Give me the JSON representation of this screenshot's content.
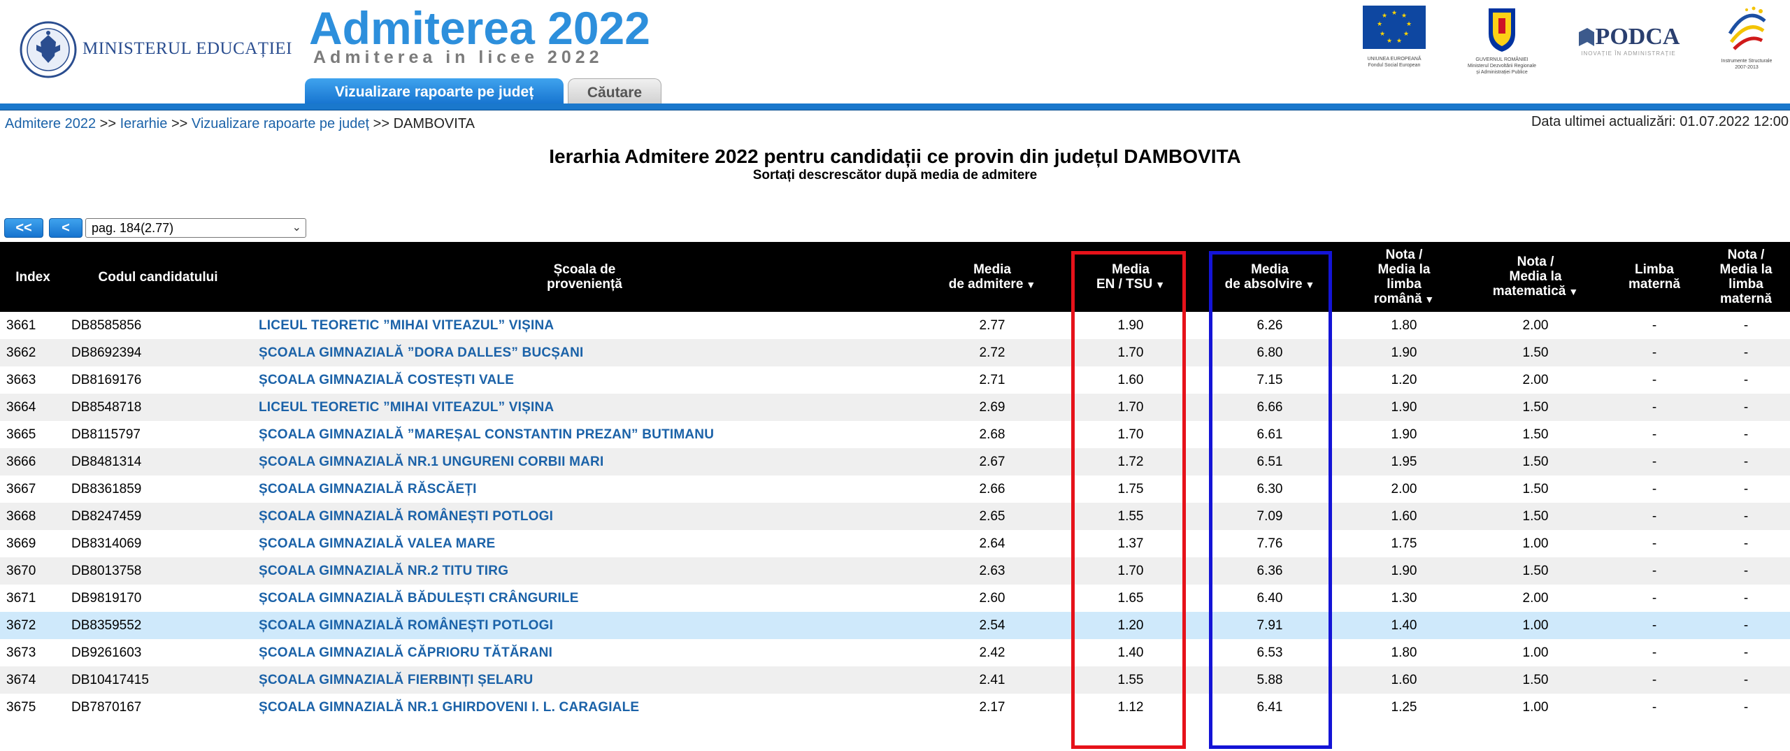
{
  "header": {
    "ministry_name": "MINISTERUL EDUCAȚIEI",
    "app_title": "Admiterea 2022",
    "app_subtitle": "Admiterea in licee 2022",
    "logos": {
      "eu_caption": [
        "UNIUNEA EUROPEANĂ",
        "Fondul Social European"
      ],
      "gov_caption": [
        "GUVERNUL ROMÂNIEI",
        "Ministerul Dezvoltării Regionale",
        "și Administrației Publice"
      ],
      "podca_name": "PODCA",
      "podca_tagline": "INOVAȚIE ÎN ADMINISTRAȚIE",
      "is_caption": [
        "Instrumente Structurale",
        "2007-2013"
      ]
    }
  },
  "tabs": [
    {
      "label": "Vizualizare rapoarte pe județ",
      "active": true
    },
    {
      "label": "Căutare",
      "active": false
    }
  ],
  "breadcrumb": {
    "items": [
      "Admitere 2022",
      "Ierarhie",
      "Vizualizare rapoarte pe județ"
    ],
    "separator": ">>",
    "current": "DAMBOVITA"
  },
  "last_update": "Data ultimei actualizări: 01.07.2022 12:00",
  "page": {
    "title": "Ierarhia Admitere 2022 pentru candidații ce provin din județul DAMBOVITA",
    "subtitle": "Sortați descrescător după media de admitere"
  },
  "pager": {
    "first_label": "<<",
    "prev_label": "<",
    "selected_page": "pag. 184(2.77)"
  },
  "colors": {
    "accent_blue": "#1a78cc",
    "link_blue": "#1b62a8",
    "highlight_red": "#e6121a",
    "highlight_blue": "#1414d6",
    "selected_row": "#cfe9fb"
  },
  "table": {
    "headers": [
      {
        "lines": [
          "Index"
        ],
        "sortable": false
      },
      {
        "lines": [
          "Codul candidatului"
        ],
        "sortable": false
      },
      {
        "lines": [
          "Școala de",
          "proveniență"
        ],
        "sortable": false
      },
      {
        "lines": [
          "Media",
          "de admitere"
        ],
        "sortable": true
      },
      {
        "lines": [
          "Media",
          "EN / TSU"
        ],
        "sortable": true
      },
      {
        "lines": [
          "Media",
          "de absolvire"
        ],
        "sortable": true
      },
      {
        "lines": [
          "Nota /",
          "Media la",
          "limba",
          "română"
        ],
        "sortable": true
      },
      {
        "lines": [
          "Nota /",
          "Media la",
          "matematică"
        ],
        "sortable": true
      },
      {
        "lines": [
          "Limba",
          "maternă"
        ],
        "sortable": false
      },
      {
        "lines": [
          "Nota /",
          "Media la",
          "limba",
          "maternă"
        ],
        "sortable": false
      }
    ],
    "sort_arrow": "▼",
    "rows": [
      [
        "3661",
        "DB8585856",
        "LICEUL TEORETIC ”MIHAI VITEAZUL” VIȘINA",
        "2.77",
        "1.90",
        "6.26",
        "1.80",
        "2.00",
        "-",
        "-"
      ],
      [
        "3662",
        "DB8692394",
        "ȘCOALA GIMNAZIALĂ ”DORA DALLES” BUCȘANI",
        "2.72",
        "1.70",
        "6.80",
        "1.90",
        "1.50",
        "-",
        "-"
      ],
      [
        "3663",
        "DB8169176",
        "ȘCOALA GIMNAZIALĂ COSTEȘTI VALE",
        "2.71",
        "1.60",
        "7.15",
        "1.20",
        "2.00",
        "-",
        "-"
      ],
      [
        "3664",
        "DB8548718",
        "LICEUL TEORETIC ”MIHAI VITEAZUL” VIȘINA",
        "2.69",
        "1.70",
        "6.66",
        "1.90",
        "1.50",
        "-",
        "-"
      ],
      [
        "3665",
        "DB8115797",
        "ȘCOALA GIMNAZIALĂ ”MAREȘAL CONSTANTIN PREZAN” BUTIMANU",
        "2.68",
        "1.70",
        "6.61",
        "1.90",
        "1.50",
        "-",
        "-"
      ],
      [
        "3666",
        "DB8481314",
        "ȘCOALA GIMNAZIALĂ NR.1 UNGURENI CORBII MARI",
        "2.67",
        "1.72",
        "6.51",
        "1.95",
        "1.50",
        "-",
        "-"
      ],
      [
        "3667",
        "DB8361859",
        "ȘCOALA GIMNAZIALĂ RĂSCĂEȚI",
        "2.66",
        "1.75",
        "6.30",
        "2.00",
        "1.50",
        "-",
        "-"
      ],
      [
        "3668",
        "DB8247459",
        "ȘCOALA GIMNAZIALĂ ROMÂNEȘTI POTLOGI",
        "2.65",
        "1.55",
        "7.09",
        "1.60",
        "1.50",
        "-",
        "-"
      ],
      [
        "3669",
        "DB8314069",
        "ȘCOALA GIMNAZIALĂ VALEA MARE",
        "2.64",
        "1.37",
        "7.76",
        "1.75",
        "1.00",
        "-",
        "-"
      ],
      [
        "3670",
        "DB8013758",
        "ȘCOALA GIMNAZIALĂ NR.2 TITU TIRG",
        "2.63",
        "1.70",
        "6.36",
        "1.90",
        "1.50",
        "-",
        "-"
      ],
      [
        "3671",
        "DB9819170",
        "ȘCOALA GIMNAZIALĂ BĂDULEȘTI CRÂNGURILE",
        "2.60",
        "1.65",
        "6.40",
        "1.30",
        "2.00",
        "-",
        "-"
      ],
      [
        "3672",
        "DB8359552",
        "ȘCOALA GIMNAZIALĂ ROMÂNEȘTI POTLOGI",
        "2.54",
        "1.20",
        "7.91",
        "1.40",
        "1.00",
        "-",
        "-"
      ],
      [
        "3673",
        "DB9261603",
        "ȘCOALA GIMNAZIALĂ CĂPRIORU TĂTĂRANI",
        "2.42",
        "1.40",
        "6.53",
        "1.80",
        "1.00",
        "-",
        "-"
      ],
      [
        "3674",
        "DB10417415",
        "ȘCOALA GIMNAZIALĂ FIERBINȚI ȘELARU",
        "2.41",
        "1.55",
        "5.88",
        "1.60",
        "1.50",
        "-",
        "-"
      ],
      [
        "3675",
        "DB7870167",
        "ȘCOALA GIMNAZIALĂ NR.1 GHIRDOVENI I. L. CARAGIALE",
        "2.17",
        "1.12",
        "6.41",
        "1.25",
        "1.00",
        "-",
        "-"
      ]
    ],
    "selected_row_index": 11
  }
}
